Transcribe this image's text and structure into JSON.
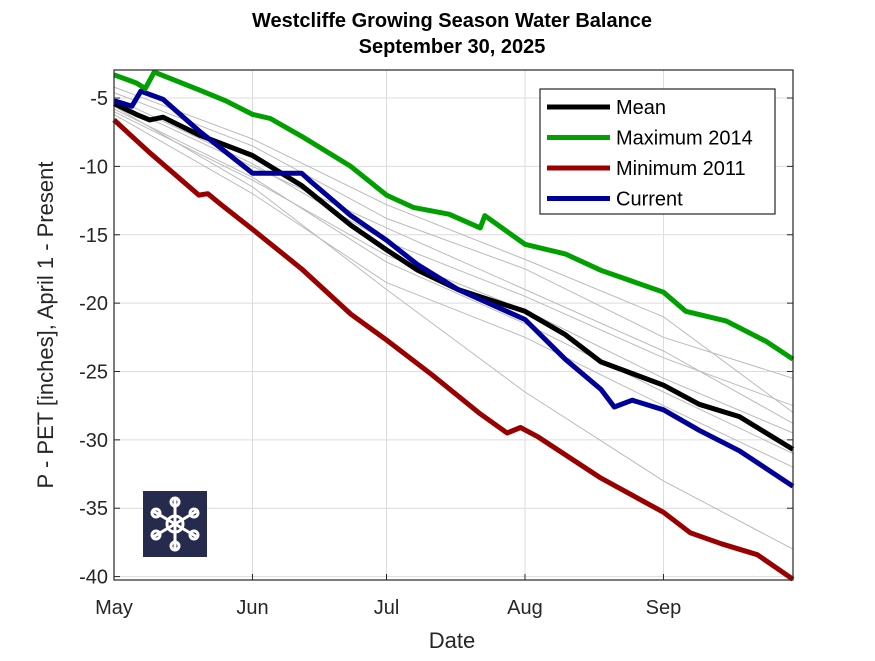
{
  "chart_data": {
    "type": "line",
    "title": "Westcliffe Growing Season Water Balance",
    "subtitle": "September 30, 2025",
    "xlabel": "Date",
    "ylabel": "P - PET [inches], April 1 - Present",
    "x_unit": "days since May 1",
    "xlim": [
      0,
      152
    ],
    "ylim": [
      -40.25,
      -2.95
    ],
    "grid": true,
    "legend_position": "top-right",
    "xticks": [
      {
        "label": "May",
        "day": 0
      },
      {
        "label": "Jun",
        "day": 31
      },
      {
        "label": "Jul",
        "day": 61
      },
      {
        "label": "Aug",
        "day": 92
      },
      {
        "label": "Sep",
        "day": 123
      }
    ],
    "yticks": [
      -5,
      -10,
      -15,
      -20,
      -25,
      -30,
      -35,
      -40
    ],
    "series": [
      {
        "name": "Mean",
        "color": "#000000",
        "points": [
          [
            0,
            -5.4
          ],
          [
            5,
            -6.2
          ],
          [
            8,
            -6.6
          ],
          [
            11,
            -6.4
          ],
          [
            19,
            -7.7
          ],
          [
            31,
            -9.2
          ],
          [
            42,
            -11.4
          ],
          [
            53,
            -14.3
          ],
          [
            61,
            -16.1
          ],
          [
            68,
            -17.6
          ],
          [
            77,
            -19
          ],
          [
            92,
            -20.6
          ],
          [
            101,
            -22.3
          ],
          [
            109,
            -24.3
          ],
          [
            123,
            -26
          ],
          [
            131,
            -27.4
          ],
          [
            140,
            -28.3
          ],
          [
            152,
            -30.7
          ]
        ]
      },
      {
        "name": "Maximum 2014",
        "color": "#00a000",
        "points": [
          [
            0,
            -3.3
          ],
          [
            5,
            -3.9
          ],
          [
            7,
            -4.3
          ],
          [
            9,
            -3.1
          ],
          [
            19,
            -4.4
          ],
          [
            25,
            -5.2
          ],
          [
            31,
            -6.2
          ],
          [
            35,
            -6.5
          ],
          [
            42,
            -7.8
          ],
          [
            53,
            -10
          ],
          [
            61,
            -12.1
          ],
          [
            67,
            -13
          ],
          [
            75,
            -13.5
          ],
          [
            82,
            -14.5
          ],
          [
            83,
            -13.6
          ],
          [
            92,
            -15.7
          ],
          [
            101,
            -16.4
          ],
          [
            109,
            -17.6
          ],
          [
            123,
            -19.2
          ],
          [
            128,
            -20.6
          ],
          [
            137,
            -21.3
          ],
          [
            146,
            -22.8
          ],
          [
            152,
            -24.1
          ]
        ]
      },
      {
        "name": "Minimum 2011",
        "color": "#990000",
        "points": [
          [
            0,
            -6.6
          ],
          [
            8,
            -9
          ],
          [
            19,
            -12.1
          ],
          [
            21,
            -12
          ],
          [
            24,
            -12.8
          ],
          [
            31,
            -14.6
          ],
          [
            42,
            -17.5
          ],
          [
            53,
            -20.8
          ],
          [
            61,
            -22.7
          ],
          [
            71,
            -25.2
          ],
          [
            82,
            -28.1
          ],
          [
            88,
            -29.5
          ],
          [
            91,
            -29.1
          ],
          [
            95,
            -29.8
          ],
          [
            109,
            -32.8
          ],
          [
            123,
            -35.3
          ],
          [
            129,
            -36.8
          ],
          [
            136,
            -37.6
          ],
          [
            144,
            -38.4
          ],
          [
            152,
            -40.2
          ]
        ]
      },
      {
        "name": "Current",
        "color": "#000099",
        "points": [
          [
            0,
            -5.2
          ],
          [
            4,
            -5.6
          ],
          [
            6,
            -4.5
          ],
          [
            11,
            -5.1
          ],
          [
            19,
            -7.4
          ],
          [
            31,
            -10.5
          ],
          [
            42,
            -10.5
          ],
          [
            44,
            -11.1
          ],
          [
            53,
            -13.6
          ],
          [
            61,
            -15.4
          ],
          [
            68,
            -17.2
          ],
          [
            77,
            -19
          ],
          [
            92,
            -21.2
          ],
          [
            101,
            -24.1
          ],
          [
            109,
            -26.3
          ],
          [
            112,
            -27.6
          ],
          [
            116,
            -27.1
          ],
          [
            123,
            -27.8
          ],
          [
            131,
            -29.3
          ],
          [
            140,
            -30.8
          ],
          [
            152,
            -33.4
          ]
        ]
      }
    ],
    "historical_series_color": "#bbbbbb",
    "historical": [
      [
        [
          0,
          -4.6
        ],
        [
          31,
          -8.5
        ],
        [
          61,
          -13.8
        ],
        [
          92,
          -17.5
        ],
        [
          123,
          -22.5
        ],
        [
          152,
          -25.5
        ]
      ],
      [
        [
          0,
          -5
        ],
        [
          31,
          -9.8
        ],
        [
          61,
          -15.5
        ],
        [
          92,
          -19.5
        ],
        [
          123,
          -24
        ],
        [
          152,
          -27.5
        ]
      ],
      [
        [
          0,
          -5.8
        ],
        [
          31,
          -10.8
        ],
        [
          61,
          -17
        ],
        [
          92,
          -21.5
        ],
        [
          123,
          -26.5
        ],
        [
          152,
          -31
        ]
      ],
      [
        [
          0,
          -6.2
        ],
        [
          31,
          -12
        ],
        [
          61,
          -18.5
        ],
        [
          92,
          -22.5
        ],
        [
          123,
          -27.5
        ],
        [
          152,
          -32
        ]
      ],
      [
        [
          0,
          -4.2
        ],
        [
          31,
          -8
        ],
        [
          61,
          -12.8
        ],
        [
          92,
          -16.8
        ],
        [
          123,
          -21
        ],
        [
          152,
          -28
        ]
      ],
      [
        [
          0,
          -5.6
        ],
        [
          31,
          -11.5
        ],
        [
          61,
          -19
        ],
        [
          92,
          -26.5
        ],
        [
          123,
          -33
        ],
        [
          152,
          -38
        ]
      ],
      [
        [
          0,
          -6
        ],
        [
          31,
          -11
        ],
        [
          61,
          -16.5
        ],
        [
          92,
          -20.5
        ],
        [
          123,
          -25.5
        ],
        [
          152,
          -29.5
        ]
      ],
      [
        [
          0,
          -5.3
        ],
        [
          31,
          -10
        ],
        [
          61,
          -14.5
        ],
        [
          92,
          -19
        ],
        [
          123,
          -23.5
        ],
        [
          152,
          -28.8
        ]
      ]
    ]
  }
}
